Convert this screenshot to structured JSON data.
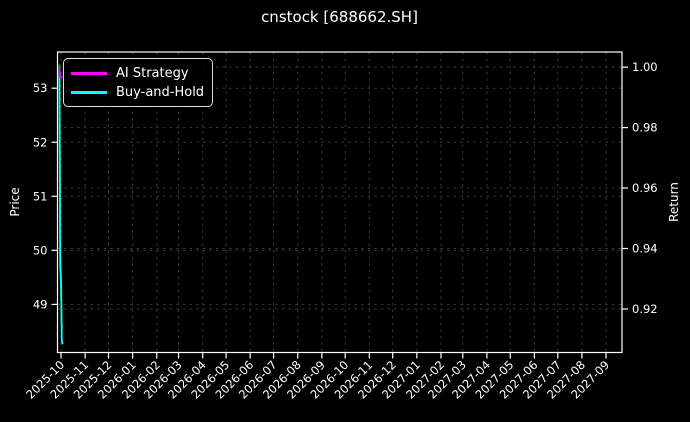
{
  "chart_data": {
    "type": "line",
    "title": "cnstock [688662.SH]",
    "left_axis": {
      "label": "Price",
      "ticks": [
        53,
        52,
        51,
        50,
        49
      ],
      "range": [
        48.11,
        53.67
      ]
    },
    "right_axis": {
      "label": "Return",
      "ticks": [
        1.0,
        0.98,
        0.96,
        0.94,
        0.92
      ],
      "range": [
        0.9056,
        1.005
      ]
    },
    "x_axis": {
      "origin": "2025-10-01",
      "range_days": [
        -4.5,
        720.5
      ],
      "tick_labels": [
        "2025-10",
        "2025-11",
        "2025-12",
        "2026-01",
        "2026-02",
        "2026-03",
        "2026-04",
        "2026-05",
        "2026-06",
        "2026-07",
        "2026-08",
        "2026-09",
        "2026-10",
        "2026-11",
        "2026-12",
        "2027-01",
        "2027-02",
        "2027-03",
        "2027-04",
        "2027-05",
        "2027-06",
        "2027-07",
        "2027-08",
        "2027-09"
      ]
    },
    "grid": "dashed",
    "series": [
      {
        "name": "Price",
        "axis": "left",
        "color": "#008000",
        "x": [
          "2025-09-29",
          "2025-09-30",
          "2025-10-01",
          "2025-10-02",
          "2025-10-03"
        ],
        "y": [
          53.45,
          49.95,
          49.62,
          48.62,
          48.55
        ]
      },
      {
        "name": "Buy-and-Hold",
        "axis": "right",
        "color": "#00ffff",
        "x": [
          "2025-09-29",
          "2025-09-30",
          "2025-10-01",
          "2025-10-02",
          "2025-10-03"
        ],
        "y": [
          1.0,
          0.9345,
          0.9283,
          0.9096,
          0.9083
        ]
      },
      {
        "name": "AI Strategy",
        "axis": "right",
        "color": "#ff00ff",
        "x": [
          "2025-09-29",
          "2025-09-30",
          "2025-10-01",
          "2025-10-02",
          "2025-10-03"
        ],
        "y": [
          1.0,
          0.9966,
          0.9966,
          0.9966,
          0.9966
        ]
      }
    ],
    "legend": {
      "position": "upper left",
      "items": [
        {
          "label": "AI Strategy",
          "color": "#ff00ff"
        },
        {
          "label": "Buy-and-Hold",
          "color": "#00ffff"
        }
      ]
    },
    "colors": {
      "bg": "#000000",
      "fg": "#ffffff",
      "grid": "#3a3a3a"
    }
  }
}
